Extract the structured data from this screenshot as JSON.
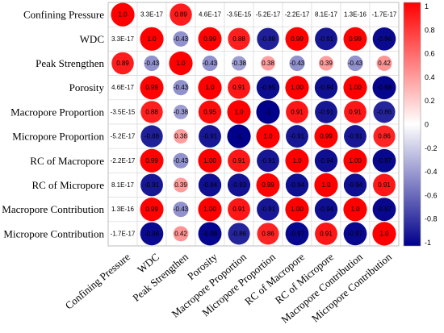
{
  "chart_data": {
    "type": "heatmap",
    "variables": [
      "Confining Pressure",
      "WDC",
      "Peak Strengthen",
      "Porosity",
      "Macropore Proportion",
      "Micropore Proportion",
      "RC of Macropore",
      "RC of Micropore",
      "Macropore Contribution",
      "Micropore Contribution"
    ],
    "values": [
      [
        1.0,
        3.3e-17,
        0.89,
        4.6e-17,
        -3.5e-15,
        -5.2e-17,
        -2.2e-17,
        8.1e-17,
        1.3e-16,
        -1.7e-17
      ],
      [
        3.3e-17,
        1.0,
        -0.43,
        0.99,
        0.88,
        -0.88,
        0.99,
        -0.91,
        0.99,
        -0.96
      ],
      [
        0.89,
        -0.43,
        1.0,
        -0.43,
        -0.38,
        0.38,
        -0.43,
        0.39,
        -0.43,
        0.42
      ],
      [
        4.6e-17,
        0.99,
        -0.43,
        1.0,
        0.91,
        -0.95,
        1.0,
        -0.94,
        1.0,
        -0.98
      ],
      [
        -3.5e-15,
        0.88,
        -0.38,
        0.95,
        1.0,
        -1.0,
        0.91,
        -0.91,
        0.91,
        -0.86
      ],
      [
        -5.2e-17,
        -0.88,
        0.38,
        -0.91,
        -1.0,
        1.0,
        -0.91,
        0.99,
        -0.91,
        0.86
      ],
      [
        -2.2e-17,
        0.99,
        -0.43,
        1.0,
        0.91,
        -0.91,
        1.0,
        -0.94,
        1.0,
        -0.97
      ],
      [
        8.1e-17,
        -0.91,
        0.39,
        -0.94,
        -0.93,
        0.99,
        -0.94,
        1.0,
        -0.94,
        0.91
      ],
      [
        1.3e-16,
        0.99,
        -0.43,
        1.0,
        0.91,
        -0.91,
        1.0,
        -0.94,
        1.0,
        -0.97
      ],
      [
        -1.7e-17,
        -0.96,
        0.42,
        -0.98,
        -0.86,
        0.86,
        -0.97,
        0.91,
        -0.97,
        1.0
      ]
    ],
    "value_labels": [
      [
        "1.0",
        "3.3E-17",
        "0.89",
        "4.6E-17",
        "-3.5E-15",
        "-5.2E-17",
        "-2.2E-17",
        "8.1E-17",
        "1.3E-16",
        "-1.7E-17"
      ],
      [
        "3.3E-17",
        "1.0",
        "-0.43",
        "0.99",
        "0.88",
        "-0.88",
        "0.99",
        "-0.91",
        "0.99",
        "-0.96"
      ],
      [
        "0.89",
        "-0.43",
        "1.0",
        "-0.43",
        "-0.38",
        "0.38",
        "-0.43",
        "0.39",
        "-0.43",
        "0.42"
      ],
      [
        "4.6E-17",
        "0.99",
        "-0.43",
        "1.0",
        "0.91",
        "-0.95",
        "1.00",
        "-0.94",
        "1.00",
        "-0.98"
      ],
      [
        "-3.5E-15",
        "0.88",
        "-0.38",
        "0.95",
        "1.0",
        "-1",
        "0.91",
        "-0.91",
        "0.91",
        "-0.86"
      ],
      [
        "-5.2E-17",
        "-0.88",
        "0.38",
        "-0.91",
        "-1",
        "1.0",
        "-0.91",
        "0.99",
        "-0.91",
        "0.86"
      ],
      [
        "-2.2E-17",
        "0.99",
        "-0.43",
        "1.00",
        "0.91",
        "-0.91",
        "1.0",
        "-0.94",
        "1.00",
        "-0.97"
      ],
      [
        "8.1E-17",
        "-0.91",
        "0.39",
        "-0.94",
        "-0.93",
        "0.99",
        "-0.94",
        "1.0",
        "-0.94",
        "0.91"
      ],
      [
        "1.3E-16",
        "0.99",
        "-0.43",
        "1.00",
        "0.91",
        "-0.91",
        "1.00",
        "-0.94",
        "1.0",
        "-0.97"
      ],
      [
        "-1.7E-17",
        "-0.96",
        "0.42",
        "-0.98",
        "-0.86",
        "0.86",
        "-0.97",
        "0.91",
        "-0.97",
        "1.0"
      ]
    ],
    "colorbar": {
      "range": [
        -1,
        1
      ],
      "ticks": [
        1,
        0.8,
        0.6,
        0.4,
        0.2,
        0,
        -0.2,
        -0.4,
        -0.6,
        -0.8,
        -1
      ]
    },
    "colormap": [
      {
        "value": -1,
        "color": "#00008b"
      },
      {
        "value": 0,
        "color": "#ffffff"
      },
      {
        "value": 1,
        "color": "#ff0000"
      }
    ],
    "grid": true,
    "legend": "right"
  }
}
